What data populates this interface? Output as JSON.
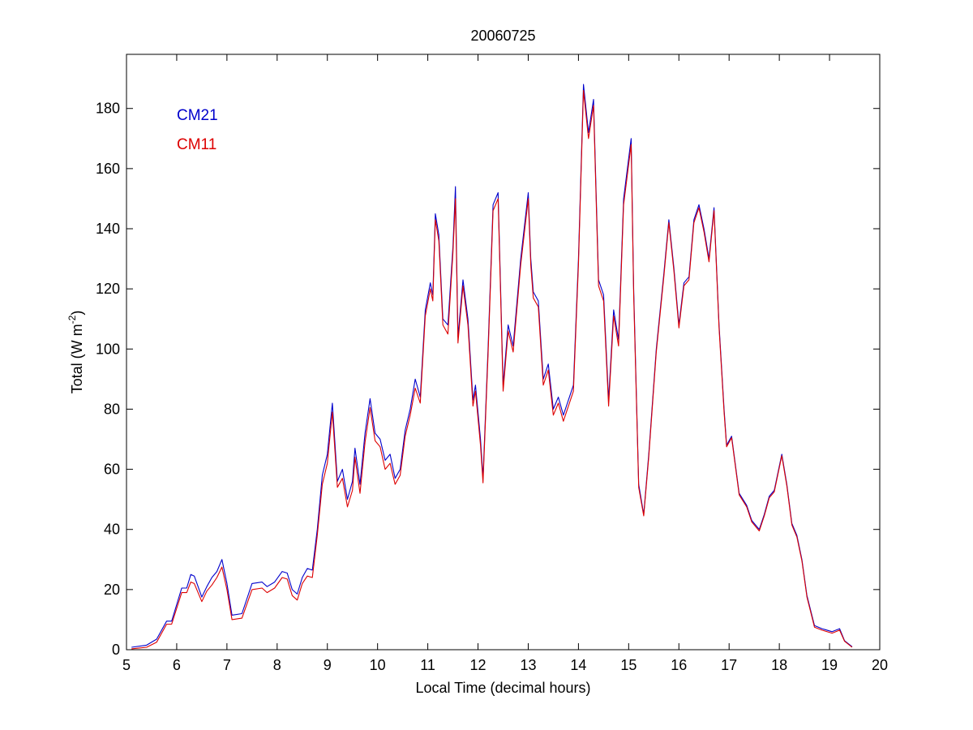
{
  "chart_data": {
    "type": "line",
    "title": "20060725",
    "xlabel": "Local Time (decimal hours)",
    "ylabel": {
      "prefix": "Total (W m",
      "superscript": "-2",
      "suffix": ")"
    },
    "xlim": [
      5,
      20
    ],
    "ylim": [
      0,
      198
    ],
    "xticks": [
      5,
      6,
      7,
      8,
      9,
      10,
      11,
      12,
      13,
      14,
      15,
      16,
      17,
      18,
      19,
      20
    ],
    "yticks": [
      0,
      20,
      40,
      60,
      80,
      100,
      120,
      140,
      160,
      180
    ],
    "grid": false,
    "legend": "top-left",
    "series": [
      {
        "name": "CM21",
        "color": "#0000cc",
        "points": [
          [
            5.1,
            0.8
          ],
          [
            5.4,
            1.5
          ],
          [
            5.6,
            3.5
          ],
          [
            5.8,
            9.5
          ],
          [
            5.9,
            9.5
          ],
          [
            6.1,
            20.5
          ],
          [
            6.2,
            20.5
          ],
          [
            6.28,
            25.0
          ],
          [
            6.35,
            24.5
          ],
          [
            6.5,
            17.5
          ],
          [
            6.6,
            21.0
          ],
          [
            6.7,
            24.0
          ],
          [
            6.8,
            26.0
          ],
          [
            6.9,
            30.0
          ],
          [
            7.0,
            22.0
          ],
          [
            7.1,
            11.5
          ],
          [
            7.3,
            12.0
          ],
          [
            7.5,
            22.0
          ],
          [
            7.7,
            22.5
          ],
          [
            7.8,
            21.0
          ],
          [
            7.95,
            22.5
          ],
          [
            8.1,
            26.0
          ],
          [
            8.2,
            25.5
          ],
          [
            8.3,
            20.0
          ],
          [
            8.4,
            18.5
          ],
          [
            8.5,
            24.0
          ],
          [
            8.6,
            27.0
          ],
          [
            8.7,
            26.5
          ],
          [
            8.8,
            40.0
          ],
          [
            8.9,
            58.0
          ],
          [
            9.0,
            65.0
          ],
          [
            9.1,
            82.0
          ],
          [
            9.2,
            56.0
          ],
          [
            9.3,
            60.0
          ],
          [
            9.4,
            50.0
          ],
          [
            9.5,
            56.0
          ],
          [
            9.55,
            67.0
          ],
          [
            9.65,
            55.0
          ],
          [
            9.75,
            72.0
          ],
          [
            9.85,
            83.5
          ],
          [
            9.95,
            72.0
          ],
          [
            10.05,
            70.0
          ],
          [
            10.15,
            63.0
          ],
          [
            10.25,
            65.0
          ],
          [
            10.35,
            57.0
          ],
          [
            10.45,
            60.0
          ],
          [
            10.55,
            73.0
          ],
          [
            10.65,
            80.0
          ],
          [
            10.75,
            90.0
          ],
          [
            10.85,
            84.0
          ],
          [
            10.95,
            113.0
          ],
          [
            11.05,
            122.0
          ],
          [
            11.1,
            118.0
          ],
          [
            11.15,
            145.0
          ],
          [
            11.22,
            138.0
          ],
          [
            11.3,
            110.0
          ],
          [
            11.4,
            108.0
          ],
          [
            11.5,
            134.0
          ],
          [
            11.55,
            154.0
          ],
          [
            11.6,
            104.0
          ],
          [
            11.7,
            123.0
          ],
          [
            11.8,
            110.0
          ],
          [
            11.9,
            83.0
          ],
          [
            11.95,
            88.0
          ],
          [
            12.05,
            70.0
          ],
          [
            12.1,
            57.0
          ],
          [
            12.2,
            100.0
          ],
          [
            12.3,
            148.0
          ],
          [
            12.4,
            152.0
          ],
          [
            12.5,
            88.0
          ],
          [
            12.6,
            108.0
          ],
          [
            12.7,
            101.0
          ],
          [
            12.85,
            130.0
          ],
          [
            13.0,
            152.0
          ],
          [
            13.05,
            130.0
          ],
          [
            13.1,
            119.0
          ],
          [
            13.2,
            116.0
          ],
          [
            13.3,
            90.0
          ],
          [
            13.4,
            95.0
          ],
          [
            13.5,
            80.0
          ],
          [
            13.6,
            84.0
          ],
          [
            13.7,
            78.0
          ],
          [
            13.9,
            88.0
          ],
          [
            14.0,
            130.0
          ],
          [
            14.1,
            188.0
          ],
          [
            14.2,
            172.0
          ],
          [
            14.3,
            183.0
          ],
          [
            14.4,
            123.0
          ],
          [
            14.5,
            118.0
          ],
          [
            14.6,
            83.0
          ],
          [
            14.7,
            113.0
          ],
          [
            14.8,
            103.0
          ],
          [
            14.9,
            150.0
          ],
          [
            15.05,
            170.0
          ],
          [
            15.1,
            120.0
          ],
          [
            15.2,
            55.0
          ],
          [
            15.3,
            45.0
          ],
          [
            15.4,
            65.0
          ],
          [
            15.55,
            100.0
          ],
          [
            15.7,
            125.0
          ],
          [
            15.8,
            143.0
          ],
          [
            15.9,
            127.0
          ],
          [
            16.0,
            108.0
          ],
          [
            16.1,
            122.0
          ],
          [
            16.2,
            124.0
          ],
          [
            16.3,
            143.0
          ],
          [
            16.4,
            148.0
          ],
          [
            16.5,
            140.0
          ],
          [
            16.6,
            130.0
          ],
          [
            16.7,
            147.0
          ],
          [
            16.8,
            108.0
          ],
          [
            16.9,
            80.0
          ],
          [
            16.95,
            68.0
          ],
          [
            17.05,
            71.0
          ],
          [
            17.2,
            52.0
          ],
          [
            17.35,
            48.0
          ],
          [
            17.45,
            43.0
          ],
          [
            17.6,
            40.0
          ],
          [
            17.7,
            45.0
          ],
          [
            17.8,
            51.0
          ],
          [
            17.9,
            53.0
          ],
          [
            18.0,
            61.0
          ],
          [
            18.05,
            65.0
          ],
          [
            18.15,
            55.0
          ],
          [
            18.25,
            42.0
          ],
          [
            18.35,
            38.0
          ],
          [
            18.45,
            30.0
          ],
          [
            18.55,
            18.0
          ],
          [
            18.7,
            8.0
          ],
          [
            18.85,
            7.0
          ],
          [
            19.05,
            6.0
          ],
          [
            19.2,
            7.0
          ],
          [
            19.3,
            3.0
          ],
          [
            19.45,
            1.0
          ]
        ]
      },
      {
        "name": "CM11",
        "color": "#dd0000",
        "points": [
          [
            5.1,
            0.3
          ],
          [
            5.4,
            0.8
          ],
          [
            5.6,
            2.5
          ],
          [
            5.8,
            8.5
          ],
          [
            5.9,
            8.5
          ],
          [
            6.1,
            19.0
          ],
          [
            6.2,
            19.0
          ],
          [
            6.28,
            22.5
          ],
          [
            6.35,
            22.0
          ],
          [
            6.5,
            16.0
          ],
          [
            6.6,
            19.5
          ],
          [
            6.7,
            21.5
          ],
          [
            6.8,
            24.0
          ],
          [
            6.9,
            27.5
          ],
          [
            7.0,
            20.0
          ],
          [
            7.1,
            10.0
          ],
          [
            7.3,
            10.5
          ],
          [
            7.5,
            20.0
          ],
          [
            7.7,
            20.5
          ],
          [
            7.8,
            19.0
          ],
          [
            7.95,
            20.5
          ],
          [
            8.1,
            24.0
          ],
          [
            8.2,
            23.5
          ],
          [
            8.3,
            18.0
          ],
          [
            8.4,
            16.5
          ],
          [
            8.5,
            22.0
          ],
          [
            8.6,
            24.5
          ],
          [
            8.7,
            24.0
          ],
          [
            8.8,
            38.0
          ],
          [
            8.9,
            55.0
          ],
          [
            9.0,
            62.0
          ],
          [
            9.1,
            79.0
          ],
          [
            9.2,
            54.0
          ],
          [
            9.3,
            57.0
          ],
          [
            9.4,
            47.5
          ],
          [
            9.5,
            53.0
          ],
          [
            9.55,
            64.0
          ],
          [
            9.65,
            52.0
          ],
          [
            9.75,
            69.0
          ],
          [
            9.85,
            80.5
          ],
          [
            9.95,
            69.5
          ],
          [
            10.05,
            67.5
          ],
          [
            10.15,
            60.0
          ],
          [
            10.25,
            62.0
          ],
          [
            10.35,
            55.0
          ],
          [
            10.45,
            58.0
          ],
          [
            10.55,
            71.0
          ],
          [
            10.65,
            78.0
          ],
          [
            10.75,
            87.0
          ],
          [
            10.85,
            82.0
          ],
          [
            10.95,
            111.0
          ],
          [
            11.05,
            120.0
          ],
          [
            11.1,
            116.0
          ],
          [
            11.15,
            143.0
          ],
          [
            11.22,
            136.0
          ],
          [
            11.3,
            108.0
          ],
          [
            11.4,
            105.0
          ],
          [
            11.5,
            132.0
          ],
          [
            11.55,
            150.0
          ],
          [
            11.6,
            102.0
          ],
          [
            11.7,
            121.0
          ],
          [
            11.8,
            108.0
          ],
          [
            11.9,
            81.0
          ],
          [
            11.95,
            86.0
          ],
          [
            12.05,
            68.0
          ],
          [
            12.1,
            55.5
          ],
          [
            12.2,
            98.0
          ],
          [
            12.3,
            146.0
          ],
          [
            12.4,
            150.0
          ],
          [
            12.5,
            86.0
          ],
          [
            12.6,
            106.0
          ],
          [
            12.7,
            99.0
          ],
          [
            12.85,
            128.0
          ],
          [
            13.0,
            150.0
          ],
          [
            13.05,
            128.0
          ],
          [
            13.1,
            117.0
          ],
          [
            13.2,
            114.0
          ],
          [
            13.3,
            88.0
          ],
          [
            13.4,
            93.0
          ],
          [
            13.5,
            78.0
          ],
          [
            13.6,
            82.0
          ],
          [
            13.7,
            76.0
          ],
          [
            13.9,
            86.0
          ],
          [
            14.0,
            128.0
          ],
          [
            14.1,
            186.0
          ],
          [
            14.2,
            170.0
          ],
          [
            14.3,
            181.0
          ],
          [
            14.4,
            121.0
          ],
          [
            14.5,
            116.0
          ],
          [
            14.6,
            81.0
          ],
          [
            14.7,
            111.0
          ],
          [
            14.8,
            101.0
          ],
          [
            14.9,
            148.0
          ],
          [
            15.05,
            168.0
          ],
          [
            15.1,
            118.0
          ],
          [
            15.2,
            54.0
          ],
          [
            15.3,
            44.5
          ],
          [
            15.4,
            64.0
          ],
          [
            15.55,
            99.0
          ],
          [
            15.7,
            124.0
          ],
          [
            15.8,
            142.0
          ],
          [
            15.9,
            126.0
          ],
          [
            16.0,
            107.0
          ],
          [
            16.1,
            121.0
          ],
          [
            16.2,
            123.0
          ],
          [
            16.3,
            142.0
          ],
          [
            16.4,
            147.0
          ],
          [
            16.5,
            139.0
          ],
          [
            16.6,
            129.0
          ],
          [
            16.7,
            146.0
          ],
          [
            16.8,
            107.0
          ],
          [
            16.9,
            79.0
          ],
          [
            16.95,
            67.5
          ],
          [
            17.05,
            70.5
          ],
          [
            17.2,
            51.5
          ],
          [
            17.35,
            47.5
          ],
          [
            17.45,
            42.5
          ],
          [
            17.6,
            39.5
          ],
          [
            17.7,
            44.5
          ],
          [
            17.8,
            50.5
          ],
          [
            17.9,
            52.5
          ],
          [
            18.0,
            60.5
          ],
          [
            18.05,
            64.5
          ],
          [
            18.15,
            54.5
          ],
          [
            18.25,
            41.5
          ],
          [
            18.35,
            37.5
          ],
          [
            18.45,
            29.5
          ],
          [
            18.55,
            17.5
          ],
          [
            18.7,
            7.5
          ],
          [
            18.85,
            6.5
          ],
          [
            19.05,
            5.5
          ],
          [
            19.2,
            6.5
          ],
          [
            19.3,
            2.8
          ],
          [
            19.45,
            0.8
          ]
        ]
      }
    ]
  }
}
